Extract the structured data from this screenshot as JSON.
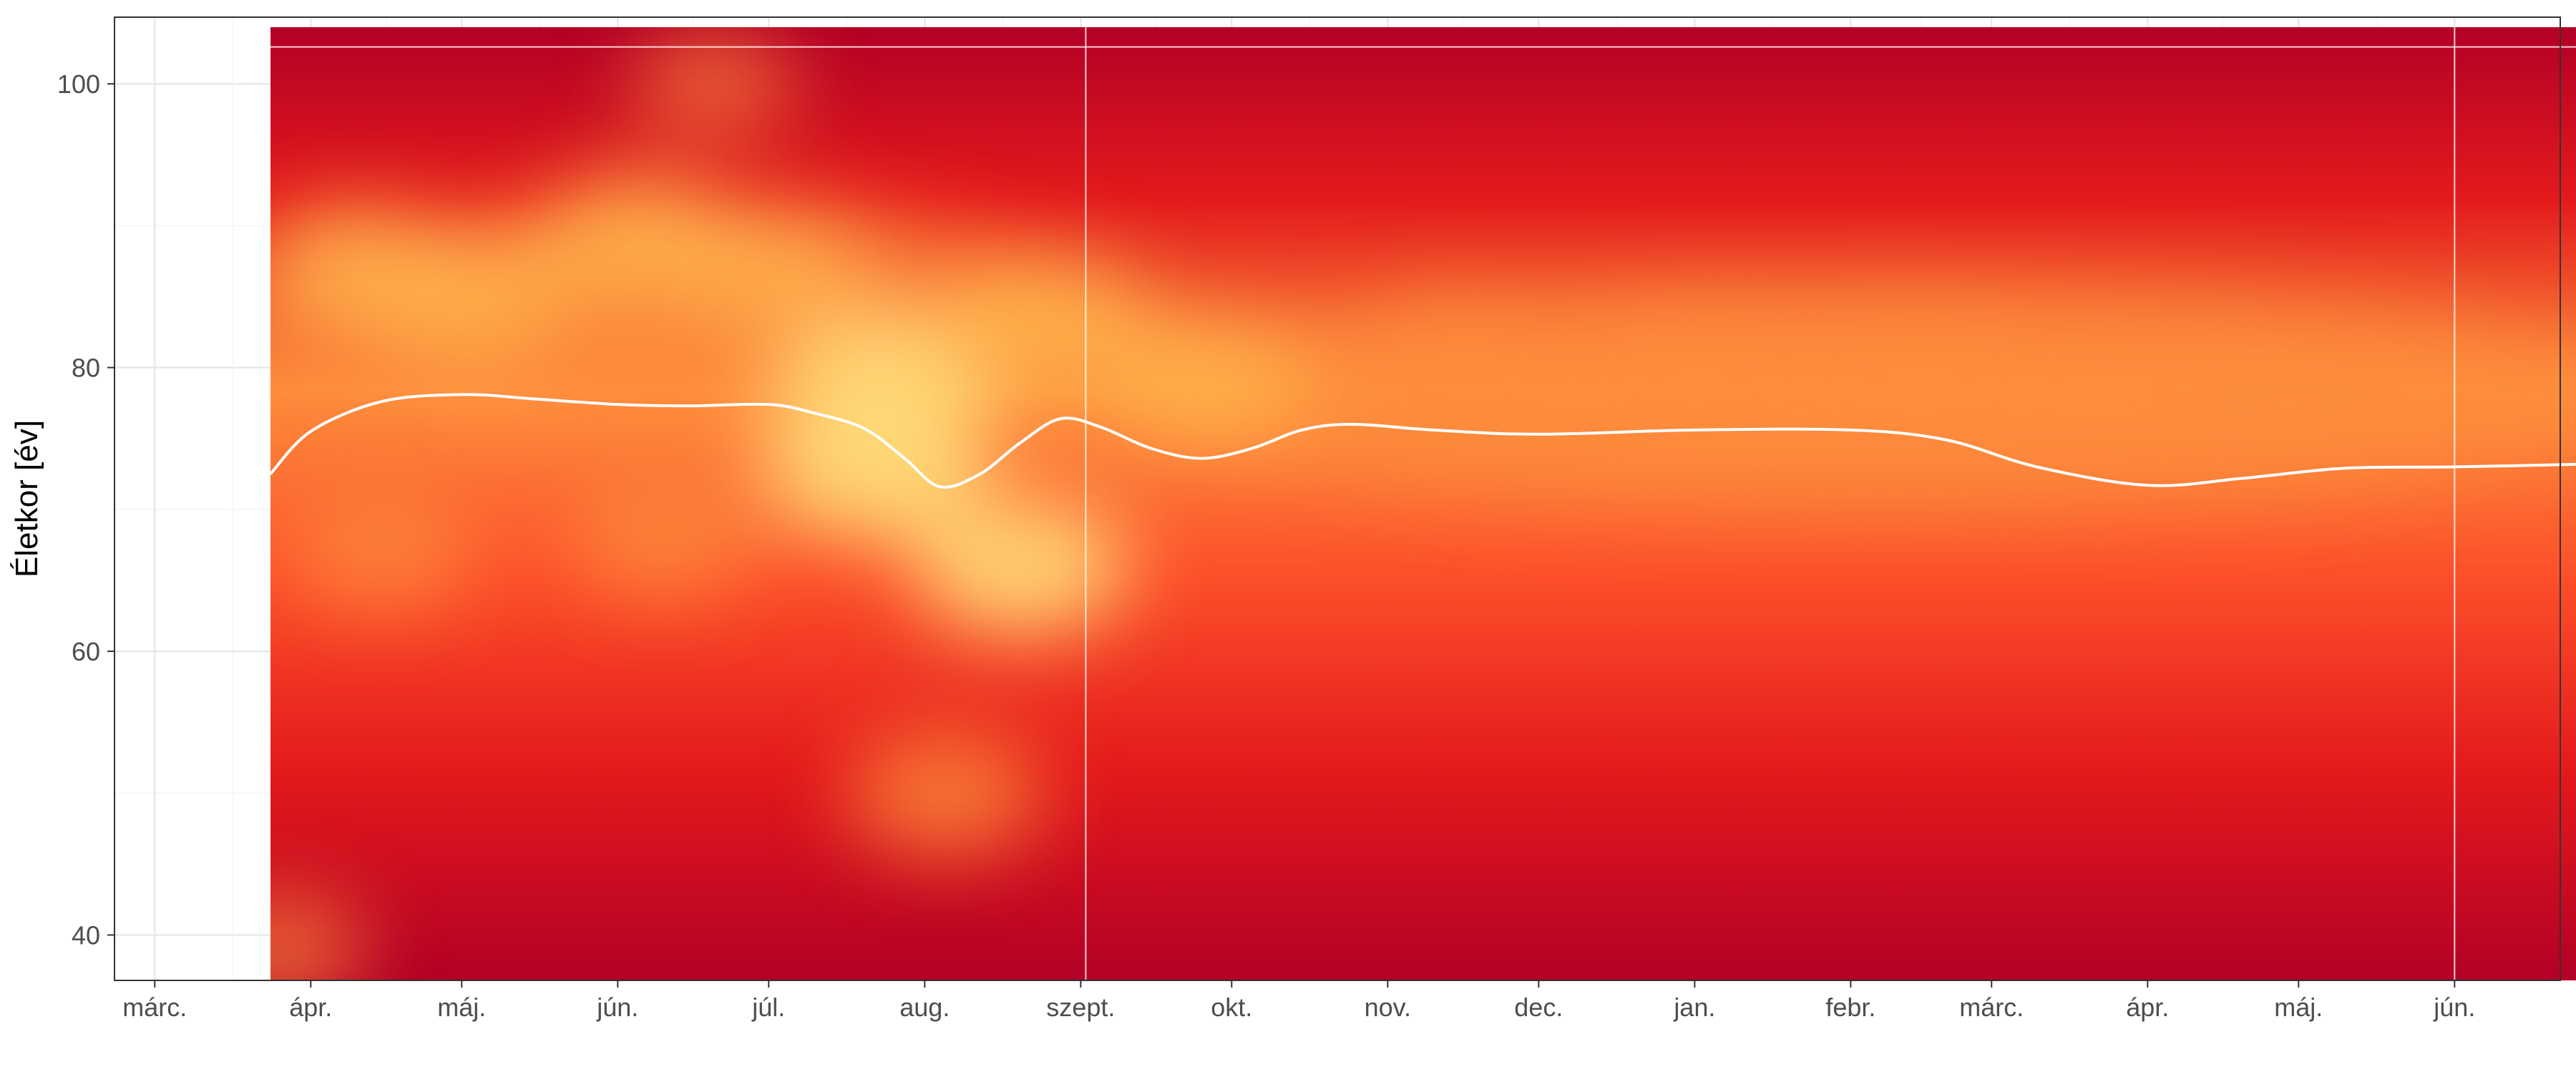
{
  "chart_data": {
    "type": "heatmap",
    "title": "",
    "xlabel": "",
    "ylabel": "Életkor [év]",
    "x_axis_type": "date",
    "xlim": [
      "2020-02-22",
      "2021-06-22"
    ],
    "ylim": [
      36.8,
      104.7
    ],
    "x_ticks": [
      {
        "date": "2020-03-01",
        "label": "márc."
      },
      {
        "date": "2020-04-01",
        "label": "ápr."
      },
      {
        "date": "2020-05-01",
        "label": "máj."
      },
      {
        "date": "2020-06-01",
        "label": "jún."
      },
      {
        "date": "2020-07-01",
        "label": "júl."
      },
      {
        "date": "2020-08-01",
        "label": "aug."
      },
      {
        "date": "2020-09-01",
        "label": "szept."
      },
      {
        "date": "2020-10-01",
        "label": "okt."
      },
      {
        "date": "2020-11-01",
        "label": "nov."
      },
      {
        "date": "2020-12-01",
        "label": "dec."
      },
      {
        "date": "2021-01-01",
        "label": "jan."
      },
      {
        "date": "2021-02-01",
        "label": "febr."
      },
      {
        "date": "2021-03-01",
        "label": "márc."
      },
      {
        "date": "2021-04-01",
        "label": "ápr."
      },
      {
        "date": "2021-05-01",
        "label": "máj."
      },
      {
        "date": "2021-06-01",
        "label": "jún."
      }
    ],
    "y_ticks": [
      40,
      60,
      80,
      100
    ],
    "grid": true,
    "legend": "none",
    "heatmap_extent": {
      "x": [
        "2020-03-24",
        "2021-06-28"
      ],
      "y": [
        36.8,
        104.0
      ]
    },
    "vertical_lines": [
      "2020-09-02",
      "2021-06-01"
    ],
    "horizontal_line": 102.6,
    "color_scale": [
      "#b30026",
      "#e31a1c",
      "#fc4e2a",
      "#fd8d3c",
      "#feb24c",
      "#fed976"
    ],
    "hotspots": [
      {
        "date": "2020-04-10",
        "age": 87,
        "intensity": 0.72
      },
      {
        "date": "2020-05-01",
        "age": 85,
        "intensity": 0.78
      },
      {
        "date": "2020-06-05",
        "age": 89,
        "intensity": 0.8
      },
      {
        "date": "2020-07-01",
        "age": 87,
        "intensity": 0.7
      },
      {
        "date": "2020-07-22",
        "age": 73,
        "intensity": 0.95
      },
      {
        "date": "2020-07-25",
        "age": 79,
        "intensity": 0.9
      },
      {
        "date": "2020-08-20",
        "age": 66,
        "intensity": 0.88
      },
      {
        "date": "2020-08-25",
        "age": 83,
        "intensity": 0.85
      },
      {
        "date": "2020-08-05",
        "age": 50,
        "intensity": 0.65
      },
      {
        "date": "2020-04-15",
        "age": 67,
        "intensity": 0.55
      },
      {
        "date": "2020-06-10",
        "age": 68,
        "intensity": 0.58
      },
      {
        "date": "2020-09-25",
        "age": 79,
        "intensity": 0.75
      },
      {
        "date": "2020-11-15",
        "age": 81,
        "intensity": 0.62
      },
      {
        "date": "2021-01-01",
        "age": 81,
        "intensity": 0.62
      },
      {
        "date": "2021-02-15",
        "age": 80,
        "intensity": 0.58
      },
      {
        "date": "2021-05-01",
        "age": 76,
        "intensity": 0.55
      },
      {
        "date": "2020-06-20",
        "age": 100,
        "intensity": 0.35
      },
      {
        "date": "2020-03-26",
        "age": 39,
        "intensity": 0.4
      }
    ],
    "series": [
      {
        "type": "line",
        "color": "#ffffff",
        "points": [
          {
            "date": "2020-03-24",
            "y": 72.5
          },
          {
            "date": "2020-04-01",
            "y": 75.5
          },
          {
            "date": "2020-04-15",
            "y": 77.6
          },
          {
            "date": "2020-05-01",
            "y": 78.1
          },
          {
            "date": "2020-05-15",
            "y": 77.8
          },
          {
            "date": "2020-06-01",
            "y": 77.4
          },
          {
            "date": "2020-06-15",
            "y": 77.3
          },
          {
            "date": "2020-07-01",
            "y": 77.4
          },
          {
            "date": "2020-07-10",
            "y": 76.8
          },
          {
            "date": "2020-07-20",
            "y": 75.7
          },
          {
            "date": "2020-07-28",
            "y": 73.6
          },
          {
            "date": "2020-08-04",
            "y": 71.6
          },
          {
            "date": "2020-08-12",
            "y": 72.5
          },
          {
            "date": "2020-08-20",
            "y": 74.7
          },
          {
            "date": "2020-08-28",
            "y": 76.4
          },
          {
            "date": "2020-09-05",
            "y": 75.8
          },
          {
            "date": "2020-09-15",
            "y": 74.3
          },
          {
            "date": "2020-09-25",
            "y": 73.6
          },
          {
            "date": "2020-10-05",
            "y": 74.3
          },
          {
            "date": "2020-10-15",
            "y": 75.6
          },
          {
            "date": "2020-10-25",
            "y": 76.0
          },
          {
            "date": "2020-11-10",
            "y": 75.6
          },
          {
            "date": "2020-12-01",
            "y": 75.3
          },
          {
            "date": "2021-01-01",
            "y": 75.6
          },
          {
            "date": "2021-02-01",
            "y": 75.6
          },
          {
            "date": "2021-02-20",
            "y": 74.9
          },
          {
            "date": "2021-03-10",
            "y": 73.0
          },
          {
            "date": "2021-04-01",
            "y": 71.7
          },
          {
            "date": "2021-04-20",
            "y": 72.2
          },
          {
            "date": "2021-05-10",
            "y": 72.9
          },
          {
            "date": "2021-06-01",
            "y": 73.0
          },
          {
            "date": "2021-06-28",
            "y": 73.2
          }
        ]
      }
    ]
  }
}
